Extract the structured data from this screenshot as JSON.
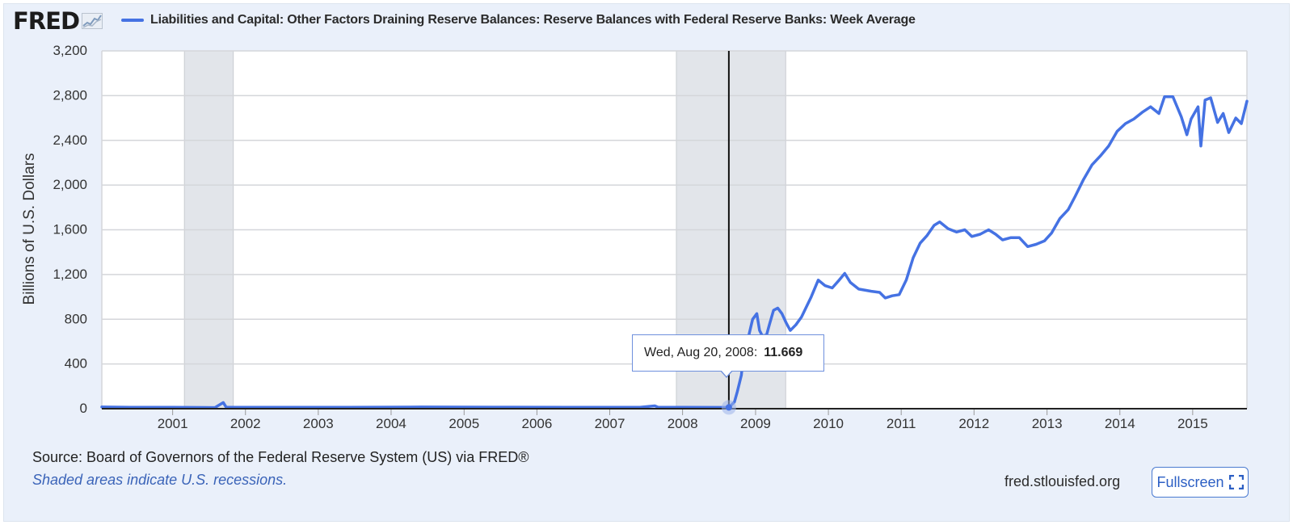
{
  "header": {
    "logo_text": "FRED",
    "logo_icon": "chart-trend-icon",
    "legend_label": "Liabilities and Capital: Other Factors Draining Reserve Balances: Reserve Balances with Federal Reserve Banks: Week Average"
  },
  "chart_data": {
    "type": "line",
    "ylabel": "Billions of U.S. Dollars",
    "ylim": [
      0,
      3200
    ],
    "y_ticks": [
      0,
      400,
      800,
      1200,
      1600,
      2000,
      2400,
      2800,
      3200
    ],
    "y_tick_labels": [
      "0",
      "400",
      "800",
      "1,200",
      "1,600",
      "2,000",
      "2,400",
      "2,800",
      "3,200"
    ],
    "xlim": [
      "2000-01-12",
      "2015-09-30"
    ],
    "x_ticks": [
      "2001-01-01",
      "2002-01-01",
      "2003-01-01",
      "2004-01-01",
      "2005-01-01",
      "2006-01-01",
      "2007-01-01",
      "2008-01-01",
      "2009-01-01",
      "2010-01-01",
      "2011-01-01",
      "2012-01-01",
      "2013-01-01",
      "2014-01-01",
      "2015-01-01"
    ],
    "x_tick_labels": [
      "2001",
      "2002",
      "2003",
      "2004",
      "2005",
      "2006",
      "2007",
      "2008",
      "2009",
      "2010",
      "2011",
      "2012",
      "2013",
      "2014",
      "2015"
    ],
    "recessions": [
      [
        "2001-03-01",
        "2001-11-01"
      ],
      [
        "2007-12-01",
        "2009-06-01"
      ]
    ],
    "grid": true,
    "series": [
      {
        "name": "Liabilities and Capital: Other Factors Draining Reserve Balances: Reserve Balances with Federal Reserve Banks: Week Average",
        "color": "#4572e3",
        "points": [
          [
            "2000-01-12",
            15
          ],
          [
            "2000-06-01",
            12
          ],
          [
            "2001-01-01",
            12
          ],
          [
            "2001-08-01",
            10
          ],
          [
            "2001-09-12",
            55
          ],
          [
            "2001-09-26",
            14
          ],
          [
            "2002-06-01",
            12
          ],
          [
            "2003-06-01",
            12
          ],
          [
            "2004-06-01",
            15
          ],
          [
            "2005-06-01",
            14
          ],
          [
            "2006-06-01",
            12
          ],
          [
            "2007-06-01",
            12
          ],
          [
            "2007-08-15",
            25
          ],
          [
            "2007-09-01",
            13
          ],
          [
            "2008-01-01",
            12
          ],
          [
            "2008-08-20",
            11.669
          ],
          [
            "2008-09-17",
            60
          ],
          [
            "2008-10-01",
            150
          ],
          [
            "2008-10-22",
            300
          ],
          [
            "2008-11-05",
            550
          ],
          [
            "2008-11-26",
            640
          ],
          [
            "2008-12-17",
            800
          ],
          [
            "2009-01-07",
            850
          ],
          [
            "2009-01-21",
            700
          ],
          [
            "2009-02-04",
            650
          ],
          [
            "2009-02-25",
            660
          ],
          [
            "2009-03-11",
            750
          ],
          [
            "2009-04-01",
            880
          ],
          [
            "2009-04-22",
            900
          ],
          [
            "2009-05-13",
            850
          ],
          [
            "2009-06-03",
            770
          ],
          [
            "2009-06-24",
            700
          ],
          [
            "2009-07-22",
            750
          ],
          [
            "2009-08-19",
            820
          ],
          [
            "2009-10-07",
            1000
          ],
          [
            "2009-11-11",
            1150
          ],
          [
            "2009-12-16",
            1100
          ],
          [
            "2010-01-20",
            1080
          ],
          [
            "2010-02-24",
            1150
          ],
          [
            "2010-03-24",
            1210
          ],
          [
            "2010-04-21",
            1130
          ],
          [
            "2010-06-02",
            1070
          ],
          [
            "2010-08-04",
            1050
          ],
          [
            "2010-09-15",
            1040
          ],
          [
            "2010-10-13",
            990
          ],
          [
            "2010-11-17",
            1010
          ],
          [
            "2010-12-22",
            1020
          ],
          [
            "2011-01-26",
            1150
          ],
          [
            "2011-03-02",
            1350
          ],
          [
            "2011-04-06",
            1480
          ],
          [
            "2011-05-11",
            1550
          ],
          [
            "2011-06-15",
            1640
          ],
          [
            "2011-07-13",
            1670
          ],
          [
            "2011-08-24",
            1610
          ],
          [
            "2011-10-05",
            1580
          ],
          [
            "2011-11-16",
            1600
          ],
          [
            "2011-12-21",
            1540
          ],
          [
            "2012-02-01",
            1560
          ],
          [
            "2012-03-14",
            1600
          ],
          [
            "2012-04-18",
            1560
          ],
          [
            "2012-05-23",
            1510
          ],
          [
            "2012-07-04",
            1530
          ],
          [
            "2012-08-15",
            1530
          ],
          [
            "2012-09-26",
            1450
          ],
          [
            "2012-11-07",
            1470
          ],
          [
            "2012-12-19",
            1500
          ],
          [
            "2013-01-23",
            1570
          ],
          [
            "2013-03-06",
            1700
          ],
          [
            "2013-04-17",
            1780
          ],
          [
            "2013-05-22",
            1900
          ],
          [
            "2013-07-03",
            2050
          ],
          [
            "2013-08-14",
            2180
          ],
          [
            "2013-09-25",
            2260
          ],
          [
            "2013-11-06",
            2350
          ],
          [
            "2013-12-18",
            2480
          ],
          [
            "2014-01-29",
            2550
          ],
          [
            "2014-03-12",
            2590
          ],
          [
            "2014-04-23",
            2650
          ],
          [
            "2014-06-04",
            2700
          ],
          [
            "2014-07-16",
            2640
          ],
          [
            "2014-08-13",
            2790
          ],
          [
            "2014-09-24",
            2790
          ],
          [
            "2014-11-05",
            2610
          ],
          [
            "2014-12-03",
            2450
          ],
          [
            "2014-12-24",
            2590
          ],
          [
            "2015-01-28",
            2700
          ],
          [
            "2015-02-11",
            2350
          ],
          [
            "2015-03-04",
            2760
          ],
          [
            "2015-04-01",
            2780
          ],
          [
            "2015-05-06",
            2560
          ],
          [
            "2015-06-03",
            2640
          ],
          [
            "2015-07-01",
            2470
          ],
          [
            "2015-08-05",
            2600
          ],
          [
            "2015-09-02",
            2550
          ],
          [
            "2015-09-30",
            2750
          ]
        ]
      }
    ],
    "cursor_date": "2008-08-20",
    "tooltip": {
      "date": "Wed, Aug 20, 2008:",
      "value": "11.669"
    }
  },
  "footer": {
    "source": "Source: Board of Governors of the Federal Reserve System (US) via FRED®",
    "note": "Shaded areas indicate U.S. recessions.",
    "site": "fred.stlouisfed.org",
    "fullscreen_label": "Fullscreen",
    "fullscreen_icon": "expand-icon"
  }
}
